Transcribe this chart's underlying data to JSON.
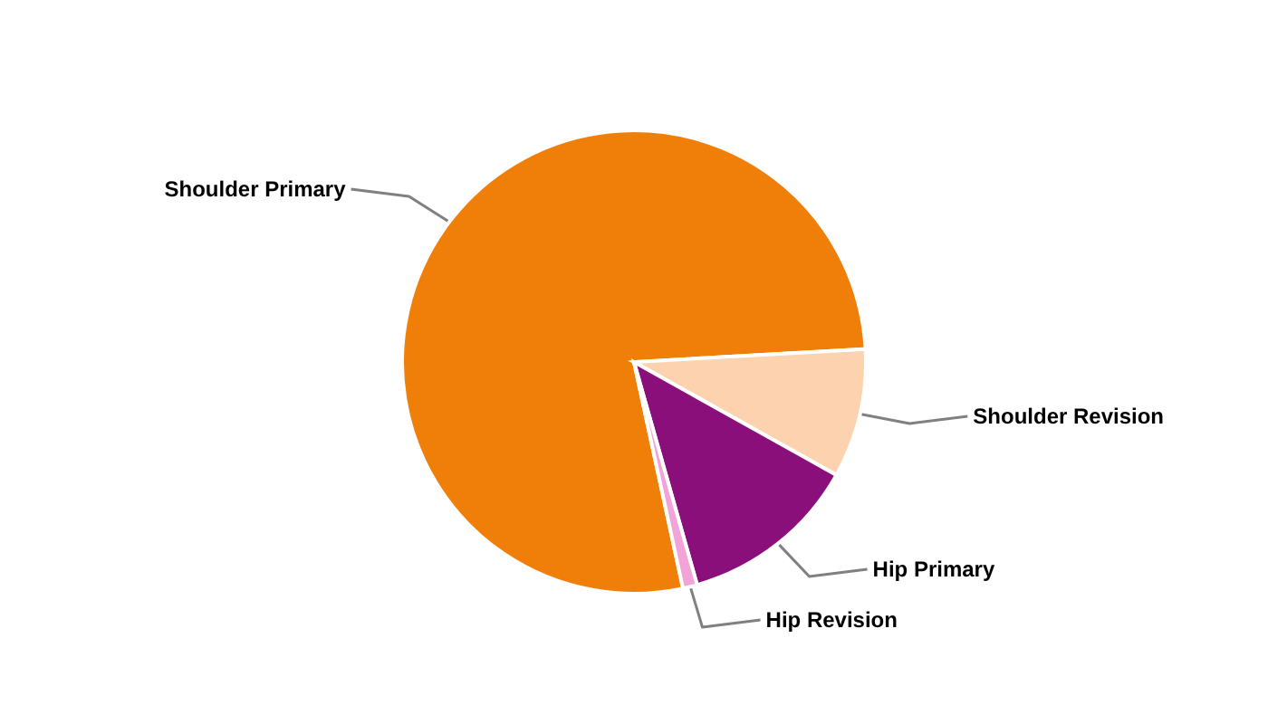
{
  "chart_data": {
    "type": "pie",
    "categories": [
      "Shoulder Primary",
      "Shoulder Revision",
      "Hip Primary",
      "Hip Revision"
    ],
    "values": [
      77.5,
      9,
      12.5,
      1
    ],
    "colors": [
      "#f07f09",
      "#fcd3ae",
      "#8a0f7a",
      "#f2a3d8"
    ]
  }
}
